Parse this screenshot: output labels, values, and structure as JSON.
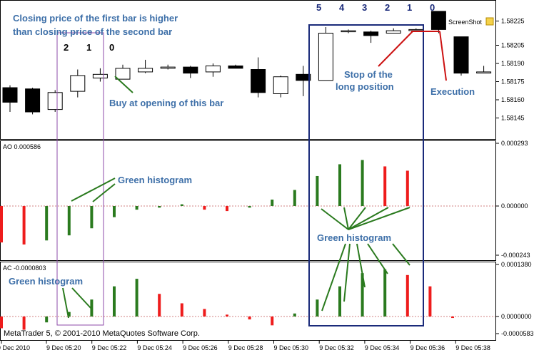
{
  "chart_data": [
    {
      "type": "candlestick",
      "name": "price",
      "y_ticks": [
        "1.58225",
        "1.58205",
        "1.58190",
        "1.58175",
        "1.58160",
        "1.58145"
      ],
      "ylim": [
        1.5813,
        1.5824
      ],
      "candles": [
        {
          "o": 1.5817,
          "h": 1.58172,
          "l": 1.5815,
          "c": 1.58158
        },
        {
          "o": 1.58169,
          "h": 1.5817,
          "l": 1.58148,
          "c": 1.5815
        },
        {
          "o": 1.58152,
          "h": 1.58168,
          "l": 1.5815,
          "c": 1.58166
        },
        {
          "o": 1.58167,
          "h": 1.58185,
          "l": 1.58162,
          "c": 1.5818
        },
        {
          "o": 1.58178,
          "h": 1.58186,
          "l": 1.58175,
          "c": 1.58181
        },
        {
          "o": 1.58177,
          "h": 1.58189,
          "l": 1.58177,
          "c": 1.58186
        },
        {
          "o": 1.58183,
          "h": 1.58193,
          "l": 1.58182,
          "c": 1.58186
        },
        {
          "o": 1.58186,
          "h": 1.58189,
          "l": 1.58185,
          "c": 1.58187
        },
        {
          "o": 1.58187,
          "h": 1.58188,
          "l": 1.58178,
          "c": 1.58182
        },
        {
          "o": 1.58183,
          "h": 1.5819,
          "l": 1.58179,
          "c": 1.58188
        },
        {
          "o": 1.58188,
          "h": 1.58189,
          "l": 1.58186,
          "c": 1.58186
        },
        {
          "o": 1.58185,
          "h": 1.58195,
          "l": 1.58162,
          "c": 1.58166
        },
        {
          "o": 1.58165,
          "h": 1.5818,
          "l": 1.58162,
          "c": 1.58179
        },
        {
          "o": 1.58181,
          "h": 1.58188,
          "l": 1.58163,
          "c": 1.58176
        },
        {
          "o": 1.58176,
          "h": 1.5822,
          "l": 1.58176,
          "c": 1.58215
        },
        {
          "o": 1.58217,
          "h": 1.58218,
          "l": 1.58215,
          "c": 1.58217
        },
        {
          "o": 1.58216,
          "h": 1.58217,
          "l": 1.58207,
          "c": 1.58213
        },
        {
          "o": 1.58215,
          "h": 1.58219,
          "l": 1.58215,
          "c": 1.58217
        },
        {
          "o": 1.58218,
          "h": 1.58219,
          "l": 1.58217,
          "c": 1.58218
        },
        {
          "o": 1.58233,
          "h": 1.58233,
          "l": 1.58215,
          "c": 1.58218
        },
        {
          "o": 1.58212,
          "h": 1.58212,
          "l": 1.5818,
          "c": 1.58182
        },
        {
          "o": 1.58183,
          "h": 1.58188,
          "l": 1.58183,
          "c": 1.58183
        }
      ]
    },
    {
      "type": "bar",
      "name": "AO",
      "label": "AO 0.000586",
      "y_ticks": [
        "0.000293",
        "0.000000",
        "-0.000243"
      ],
      "ylim": [
        -0.000243,
        0.000293
      ],
      "bars": [
        {
          "v": -0.00018,
          "c": "red"
        },
        {
          "v": -0.00019,
          "c": "red"
        },
        {
          "v": -0.00017,
          "c": "green"
        },
        {
          "v": -0.000145,
          "c": "green"
        },
        {
          "v": -0.00011,
          "c": "green"
        },
        {
          "v": -5.5e-05,
          "c": "green"
        },
        {
          "v": -1.8e-05,
          "c": "green"
        },
        {
          "v": -8e-06,
          "c": "green"
        },
        {
          "v": 8e-06,
          "c": "green"
        },
        {
          "v": -1.8e-05,
          "c": "red"
        },
        {
          "v": -2.5e-05,
          "c": "red"
        },
        {
          "v": -8e-06,
          "c": "green"
        },
        {
          "v": 3e-05,
          "c": "green"
        },
        {
          "v": 7.5e-05,
          "c": "green"
        },
        {
          "v": 0.00014,
          "c": "green"
        },
        {
          "v": 0.000195,
          "c": "green"
        },
        {
          "v": 0.000215,
          "c": "green"
        },
        {
          "v": 0.000185,
          "c": "red"
        },
        {
          "v": 0.000165,
          "c": "red"
        }
      ]
    },
    {
      "type": "bar",
      "name": "AC",
      "label": "AC -0.0000803",
      "y_ticks": [
        "0.0001380",
        "0.0000000",
        "-0.0000583"
      ],
      "ylim": [
        -5.83e-05,
        0.000138
      ],
      "bars": [
        {
          "v": -4e-05,
          "c": "red"
        },
        {
          "v": -4.5e-05,
          "c": "red"
        },
        {
          "v": -2e-05,
          "c": "green"
        },
        {
          "v": 1.2e-05,
          "c": "green"
        },
        {
          "v": 4.5e-05,
          "c": "green"
        },
        {
          "v": 8e-05,
          "c": "green"
        },
        {
          "v": 0.0001,
          "c": "green"
        },
        {
          "v": 6e-05,
          "c": "red"
        },
        {
          "v": 3.5e-05,
          "c": "red"
        },
        {
          "v": 2e-05,
          "c": "red"
        },
        {
          "v": 5e-06,
          "c": "red"
        },
        {
          "v": -1e-05,
          "c": "red"
        },
        {
          "v": -3e-05,
          "c": "red"
        },
        {
          "v": 8e-06,
          "c": "green"
        },
        {
          "v": 4.5e-05,
          "c": "green"
        },
        {
          "v": 8e-05,
          "c": "green"
        },
        {
          "v": 0.000115,
          "c": "green"
        },
        {
          "v": 0.000125,
          "c": "green"
        },
        {
          "v": 0.00011,
          "c": "red"
        },
        {
          "v": 8e-05,
          "c": "red"
        },
        {
          "v": -5e-06,
          "c": "red"
        }
      ]
    }
  ],
  "x_ticks": [
    "9 Dec 2010",
    "9 Dec 05:20",
    "9 Dec 05:22",
    "9 Dec 05:24",
    "9 Dec 05:26",
    "9 Dec 05:28",
    "9 Dec 05:30",
    "9 Dec 05:32",
    "9 Dec 05:34",
    "9 Dec 05:36",
    "9 Dec 05:38"
  ],
  "annotations": {
    "title_line1": "Closing price of the first bar is higher",
    "title_line2": "than closing price of the second bar",
    "buy_label": "Buy at opening of this bar",
    "stop_line1": "Stop of the",
    "stop_line2": "long position",
    "execution": "Execution",
    "green_hist_ao_left": "Green histogram",
    "green_hist_ao_right": "Green histogram",
    "green_hist_ac_left": "Green histogram",
    "screenshot_label": "ScreenShot",
    "copyright": "MetaTrader 5, © 2001-2010 MetaQuotes Software Corp."
  },
  "bar_numbers_left": [
    "2",
    "1",
    "0"
  ],
  "bar_numbers_right": [
    "5",
    "4",
    "3",
    "2",
    "1",
    "0"
  ],
  "colors": {
    "bull": "#ffffff",
    "bear": "#000000",
    "green_bar": "#2a7a1e",
    "red_bar": "#ee1c1c",
    "annotation_text": "#3d6fa8",
    "purple_box": "#8e4aa8",
    "navy_box": "#1a2a7a",
    "leader_line": "#2a7a1e",
    "execution_line": "#cc1111",
    "zero_line": "#d08080"
  }
}
